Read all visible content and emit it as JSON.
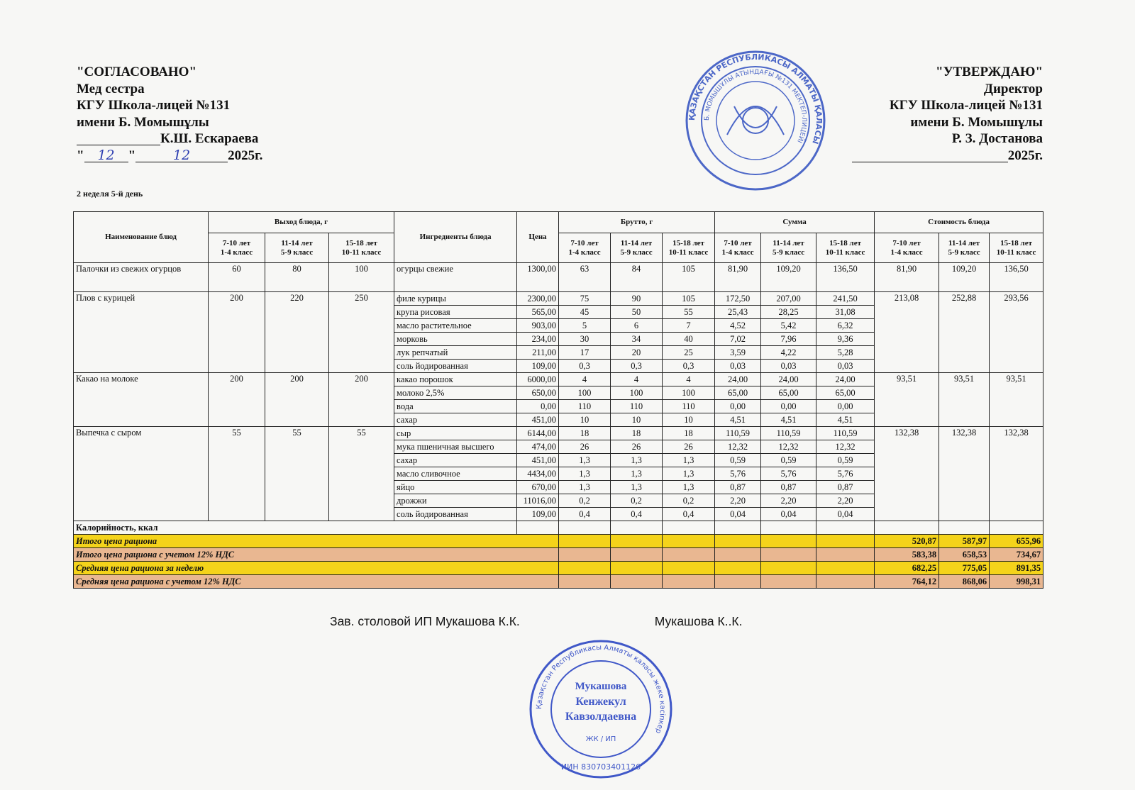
{
  "left_header": {
    "title": "\"СОГЛАСОВАНО\"",
    "role": "Мед сестра",
    "org": "КГУ Школа-лицей №131",
    "org_name": "имени Б. Момышұлы",
    "signer": "К.Ш. Ескараева",
    "date_day": "12",
    "date_month": "12",
    "date_year": "2025г."
  },
  "right_header": {
    "title": "\"УТВЕРЖДАЮ\"",
    "role": "Директор",
    "org": "КГУ Школа-лицей №131",
    "org_name": "имени Б. Момышұлы",
    "signer": "Р. З. Достанова",
    "date_year": "2025г."
  },
  "week_day": "2 неделя 5-й день",
  "table": {
    "headers": {
      "dish_name": "Наименование блюд",
      "yield": "Выход блюда, г",
      "ingredients": "Ингредиенты блюда",
      "price": "Цена",
      "brutto": "Брутто, г",
      "sum": "Сумма",
      "cost": "Стоимость блюда",
      "age_groups": [
        "7-10 лет\n1-4 класс",
        "11-14 лет\n5-9 класс",
        "15-18 лет\n10-11 класс"
      ]
    },
    "dishes": [
      {
        "name": "Палочки из свежих огурцов",
        "yield": [
          "60",
          "80",
          "100"
        ],
        "cost": [
          "81,90",
          "109,20",
          "136,50"
        ],
        "ingredients": [
          {
            "name": "огурцы свежие",
            "price": "1300,00",
            "brutto": [
              "63",
              "84",
              "105"
            ],
            "sum": [
              "81,90",
              "109,20",
              "136,50"
            ]
          }
        ]
      },
      {
        "name": "Плов с курицей",
        "yield": [
          "200",
          "220",
          "250"
        ],
        "cost": [
          "213,08",
          "252,88",
          "293,56"
        ],
        "ingredients": [
          {
            "name": "филе курицы",
            "price": "2300,00",
            "brutto": [
              "75",
              "90",
              "105"
            ],
            "sum": [
              "172,50",
              "207,00",
              "241,50"
            ]
          },
          {
            "name": "крупа рисовая",
            "price": "565,00",
            "brutto": [
              "45",
              "50",
              "55"
            ],
            "sum": [
              "25,43",
              "28,25",
              "31,08"
            ]
          },
          {
            "name": "масло растительное",
            "price": "903,00",
            "brutto": [
              "5",
              "6",
              "7"
            ],
            "sum": [
              "4,52",
              "5,42",
              "6,32"
            ]
          },
          {
            "name": "морковь",
            "price": "234,00",
            "brutto": [
              "30",
              "34",
              "40"
            ],
            "sum": [
              "7,02",
              "7,96",
              "9,36"
            ]
          },
          {
            "name": "лук репчатый",
            "price": "211,00",
            "brutto": [
              "17",
              "20",
              "25"
            ],
            "sum": [
              "3,59",
              "4,22",
              "5,28"
            ]
          },
          {
            "name": "соль йодированная",
            "price": "109,00",
            "brutto": [
              "0,3",
              "0,3",
              "0,3"
            ],
            "sum": [
              "0,03",
              "0,03",
              "0,03"
            ]
          }
        ]
      },
      {
        "name": "Какао на молоке",
        "yield": [
          "200",
          "200",
          "200"
        ],
        "cost": [
          "93,51",
          "93,51",
          "93,51"
        ],
        "ingredients": [
          {
            "name": "какао порошок",
            "price": "6000,00",
            "brutto": [
              "4",
              "4",
              "4"
            ],
            "sum": [
              "24,00",
              "24,00",
              "24,00"
            ]
          },
          {
            "name": "молоко 2,5%",
            "price": "650,00",
            "brutto": [
              "100",
              "100",
              "100"
            ],
            "sum": [
              "65,00",
              "65,00",
              "65,00"
            ]
          },
          {
            "name": "вода",
            "price": "0,00",
            "brutto": [
              "110",
              "110",
              "110"
            ],
            "sum": [
              "0,00",
              "0,00",
              "0,00"
            ]
          },
          {
            "name": "сахар",
            "price": "451,00",
            "brutto": [
              "10",
              "10",
              "10"
            ],
            "sum": [
              "4,51",
              "4,51",
              "4,51"
            ]
          }
        ]
      },
      {
        "name": "Выпечка с сыром",
        "yield": [
          "55",
          "55",
          "55"
        ],
        "cost": [
          "132,38",
          "132,38",
          "132,38"
        ],
        "ingredients": [
          {
            "name": "сыр",
            "price": "6144,00",
            "brutto": [
              "18",
              "18",
              "18"
            ],
            "sum": [
              "110,59",
              "110,59",
              "110,59"
            ]
          },
          {
            "name": "мука пшеничная высшего",
            "price": "474,00",
            "brutto": [
              "26",
              "26",
              "26"
            ],
            "sum": [
              "12,32",
              "12,32",
              "12,32"
            ]
          },
          {
            "name": "сахар",
            "price": "451,00",
            "brutto": [
              "1,3",
              "1,3",
              "1,3"
            ],
            "sum": [
              "0,59",
              "0,59",
              "0,59"
            ]
          },
          {
            "name": "масло сливочное",
            "price": "4434,00",
            "brutto": [
              "1,3",
              "1,3",
              "1,3"
            ],
            "sum": [
              "5,76",
              "5,76",
              "5,76"
            ]
          },
          {
            "name": "яйцо",
            "price": "670,00",
            "brutto": [
              "1,3",
              "1,3",
              "1,3"
            ],
            "sum": [
              "0,87",
              "0,87",
              "0,87"
            ]
          },
          {
            "name": "дрожжи",
            "price": "11016,00",
            "brutto": [
              "0,2",
              "0,2",
              "0,2"
            ],
            "sum": [
              "2,20",
              "2,20",
              "2,20"
            ]
          },
          {
            "name": "соль йодированная",
            "price": "109,00",
            "brutto": [
              "0,4",
              "0,4",
              "0,4"
            ],
            "sum": [
              "0,04",
              "0,04",
              "0,04"
            ]
          }
        ]
      }
    ],
    "calories_label": "Калорийность, ккал",
    "summary": [
      {
        "label": "Итого цена рациона",
        "values": [
          "520,87",
          "587,97",
          "655,96"
        ],
        "color": "#f4d31a"
      },
      {
        "label": "Итого цена рациона с учетом 12% НДС",
        "values": [
          "583,38",
          "658,53",
          "734,67"
        ],
        "color": "#e9b791"
      },
      {
        "label": "Средняя цена рациона за неделю",
        "values": [
          "682,25",
          "775,05",
          "891,35"
        ],
        "color": "#f4d31a"
      },
      {
        "label": "Средняя цена рациона с учетом 12% НДС",
        "values": [
          "764,12",
          "868,06",
          "998,31"
        ],
        "color": "#e9b791"
      }
    ]
  },
  "footer": {
    "left": "Зав. столовой ИП Мукашова К.К.",
    "right": "Мукашова К..К."
  },
  "stamps": {
    "school": {
      "outer": "ҚАЗАҚСТАН РЕСПУБЛИКАСЫ АЛМАТЫ ҚАЛАСЫ",
      "inner": "Б. МОМЫШҰЛЫ АТЫНДАҒЫ №131 МЕКТЕП-ЛИЦЕЙІ",
      "color": "#2f4fc0"
    },
    "ip": {
      "outer": "Қазақстан Республикасы Алматы қаласы жеке кәсіпкер",
      "name1": "Мукашова",
      "name2": "Кенжекул",
      "name3": "Кавзолдаевна",
      "type": "ЖК / ИП",
      "iin": "ИИН 830703401126",
      "color": "#2d47c4"
    }
  },
  "colors": {
    "yellow": "#f4d31a",
    "tan": "#e9b791",
    "stamp_blue": "#2f4fc0"
  }
}
